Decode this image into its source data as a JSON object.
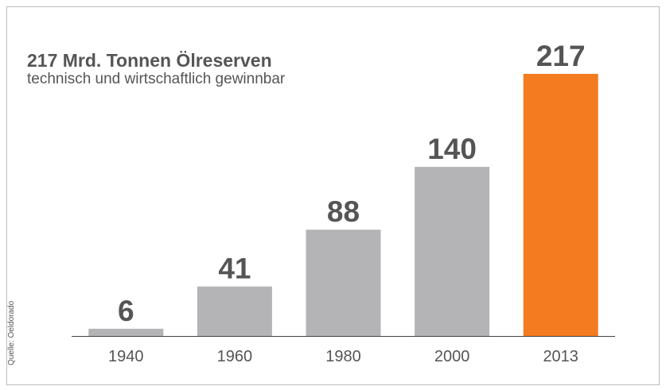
{
  "chart_data": {
    "type": "bar",
    "title": "217 Mrd. Tonnen Ölreserven",
    "subtitle": "technisch und wirtschaftlich gewinnbar",
    "source": "Quelle: Oeldorado",
    "categories": [
      "1940",
      "1960",
      "1980",
      "2000",
      "2013"
    ],
    "values": [
      6,
      41,
      88,
      140,
      217
    ],
    "colors": [
      "#b4b4b7",
      "#b4b4b7",
      "#b4b4b7",
      "#b4b4b7",
      "#f47b20"
    ]
  }
}
